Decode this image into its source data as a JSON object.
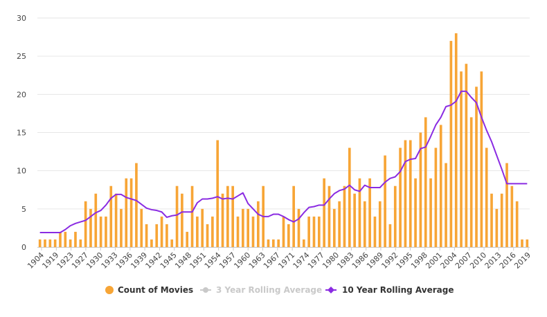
{
  "chart_data": {
    "type": "bar",
    "bar_series": {
      "name": "Count of Movies",
      "color": "#f7a536",
      "points": [
        [
          1904,
          1
        ],
        [
          1919,
          1
        ],
        [
          1920,
          1
        ],
        [
          1921,
          1
        ],
        [
          1922,
          2
        ],
        [
          1923,
          2
        ],
        [
          1924,
          1
        ],
        [
          1925,
          2
        ],
        [
          1926,
          1
        ],
        [
          1930,
          6
        ],
        [
          1931,
          5
        ],
        [
          1932,
          7
        ],
        [
          1933,
          4
        ],
        [
          1934,
          4
        ],
        [
          1935,
          8
        ],
        [
          1936,
          7
        ],
        [
          1937,
          5
        ],
        [
          1938,
          9
        ],
        [
          1939,
          9
        ],
        [
          1940,
          11
        ],
        [
          1941,
          5
        ],
        [
          1942,
          3
        ],
        [
          1943,
          1
        ],
        [
          1944,
          3
        ],
        [
          1945,
          4
        ],
        [
          1946,
          3
        ],
        [
          1947,
          1
        ],
        [
          1948,
          8
        ],
        [
          1949,
          7
        ],
        [
          1950,
          2
        ],
        [
          1951,
          8
        ],
        [
          1952,
          4
        ],
        [
          1953,
          5
        ],
        [
          1954,
          3
        ],
        [
          1955,
          4
        ],
        [
          1956,
          14
        ],
        [
          1957,
          7
        ],
        [
          1958,
          8
        ],
        [
          1959,
          8
        ],
        [
          1960,
          4
        ],
        [
          1961,
          5
        ],
        [
          1962,
          5
        ],
        [
          1963,
          4
        ],
        [
          1964,
          6
        ],
        [
          1965,
          8
        ],
        [
          1966,
          1
        ],
        [
          1967,
          1
        ],
        [
          1968,
          1
        ],
        [
          1970,
          4
        ],
        [
          1971,
          3
        ],
        [
          1972,
          8
        ],
        [
          1973,
          5
        ],
        [
          1974,
          1
        ],
        [
          1975,
          4
        ],
        [
          1976,
          4
        ],
        [
          1977,
          4
        ],
        [
          1978,
          9
        ],
        [
          1979,
          8
        ],
        [
          1980,
          5
        ],
        [
          1981,
          6
        ],
        [
          1982,
          8
        ],
        [
          1983,
          13
        ],
        [
          1984,
          7
        ],
        [
          1985,
          9
        ],
        [
          1986,
          6
        ],
        [
          1987,
          9
        ],
        [
          1988,
          4
        ],
        [
          1989,
          6
        ],
        [
          1990,
          12
        ],
        [
          1991,
          3
        ],
        [
          1992,
          8
        ],
        [
          1993,
          13
        ],
        [
          1994,
          14
        ],
        [
          1995,
          14
        ],
        [
          1996,
          9
        ],
        [
          1997,
          15
        ],
        [
          1998,
          17
        ],
        [
          1999,
          9
        ],
        [
          2000,
          13
        ],
        [
          2001,
          16
        ],
        [
          2002,
          11
        ],
        [
          2003,
          27
        ],
        [
          2004,
          28
        ],
        [
          2005,
          23
        ],
        [
          2006,
          24
        ],
        [
          2007,
          17
        ],
        [
          2008,
          21
        ],
        [
          2009,
          23
        ],
        [
          2010,
          13
        ],
        [
          2011,
          7
        ],
        [
          2012,
          5
        ],
        [
          2013,
          7
        ],
        [
          2014,
          11
        ],
        [
          2015,
          8
        ],
        [
          2016,
          6
        ],
        [
          2017,
          1
        ],
        [
          2018,
          1
        ]
      ]
    },
    "line_series": [
      {
        "name": "3 Year Rolling Average",
        "color": "#c9c9c9",
        "visible": false
      },
      {
        "name": "10 Year Rolling Average",
        "color": "#8a2be2",
        "points": [
          [
            1904,
            1.9
          ],
          [
            1919,
            1.9
          ],
          [
            1920,
            1.9
          ],
          [
            1921,
            1.9
          ],
          [
            1922,
            1.9
          ],
          [
            1923,
            2.3
          ],
          [
            1924,
            2.8
          ],
          [
            1925,
            3.1
          ],
          [
            1926,
            3.3
          ],
          [
            1930,
            3.5
          ],
          [
            1931,
            4.0
          ],
          [
            1932,
            4.5
          ],
          [
            1933,
            4.8
          ],
          [
            1934,
            5.5
          ],
          [
            1935,
            6.4
          ],
          [
            1936,
            6.9
          ],
          [
            1937,
            6.9
          ],
          [
            1938,
            6.5
          ],
          [
            1939,
            6.3
          ],
          [
            1940,
            6.1
          ],
          [
            1941,
            5.6
          ],
          [
            1942,
            5.1
          ],
          [
            1943,
            4.9
          ],
          [
            1944,
            4.8
          ],
          [
            1945,
            4.6
          ],
          [
            1946,
            3.9
          ],
          [
            1947,
            4.1
          ],
          [
            1948,
            4.2
          ],
          [
            1949,
            4.6
          ],
          [
            1950,
            4.6
          ],
          [
            1951,
            4.6
          ],
          [
            1952,
            5.8
          ],
          [
            1953,
            6.3
          ],
          [
            1954,
            6.3
          ],
          [
            1955,
            6.4
          ],
          [
            1956,
            6.6
          ],
          [
            1957,
            6.3
          ],
          [
            1958,
            6.4
          ],
          [
            1959,
            6.3
          ],
          [
            1960,
            6.7
          ],
          [
            1961,
            7.1
          ],
          [
            1962,
            5.7
          ],
          [
            1963,
            5.0
          ],
          [
            1964,
            4.3
          ],
          [
            1965,
            4.0
          ],
          [
            1966,
            4.0
          ],
          [
            1967,
            4.3
          ],
          [
            1968,
            4.3
          ],
          [
            1970,
            4.0
          ],
          [
            1971,
            3.6
          ],
          [
            1972,
            3.3
          ],
          [
            1973,
            3.7
          ],
          [
            1974,
            4.5
          ],
          [
            1975,
            5.2
          ],
          [
            1976,
            5.3
          ],
          [
            1977,
            5.5
          ],
          [
            1978,
            5.5
          ],
          [
            1979,
            6.3
          ],
          [
            1980,
            7.0
          ],
          [
            1981,
            7.4
          ],
          [
            1982,
            7.6
          ],
          [
            1983,
            8.1
          ],
          [
            1984,
            7.5
          ],
          [
            1985,
            7.3
          ],
          [
            1986,
            8.1
          ],
          [
            1987,
            7.8
          ],
          [
            1988,
            7.8
          ],
          [
            1989,
            7.8
          ],
          [
            1990,
            8.5
          ],
          [
            1991,
            9.0
          ],
          [
            1992,
            9.2
          ],
          [
            1993,
            9.9
          ],
          [
            1994,
            11.2
          ],
          [
            1995,
            11.5
          ],
          [
            1996,
            11.6
          ],
          [
            1997,
            12.9
          ],
          [
            1998,
            13.1
          ],
          [
            1999,
            14.5
          ],
          [
            2000,
            16.0
          ],
          [
            2001,
            17.0
          ],
          [
            2002,
            18.4
          ],
          [
            2003,
            18.6
          ],
          [
            2004,
            19.1
          ],
          [
            2005,
            20.4
          ],
          [
            2006,
            20.4
          ],
          [
            2007,
            19.6
          ],
          [
            2008,
            18.9
          ],
          [
            2009,
            17.0
          ],
          [
            2010,
            15.3
          ],
          [
            2011,
            13.8
          ],
          [
            2012,
            12.0
          ],
          [
            2013,
            10.2
          ],
          [
            2014,
            8.3
          ],
          [
            2015,
            8.3
          ],
          [
            2016,
            8.3
          ],
          [
            2017,
            8.3
          ],
          [
            2018,
            8.3
          ]
        ]
      }
    ],
    "x_tick_labels": [
      "1904",
      "1919",
      "1923",
      "1927",
      "1930",
      "1933",
      "1936",
      "1939",
      "1942",
      "1945",
      "1948",
      "1951",
      "1954",
      "1957",
      "1960",
      "1963",
      "1967",
      "1971",
      "1974",
      "1977",
      "1980",
      "1983",
      "1986",
      "1989",
      "1992",
      "1995",
      "1998",
      "2001",
      "2004",
      "2007",
      "2010",
      "2013",
      "2016",
      "2019"
    ],
    "y_ticks": [
      0,
      5,
      10,
      15,
      20,
      25,
      30
    ],
    "ylim": [
      0,
      30
    ],
    "grid": "horizontal",
    "legend_position": "bottom-center"
  }
}
